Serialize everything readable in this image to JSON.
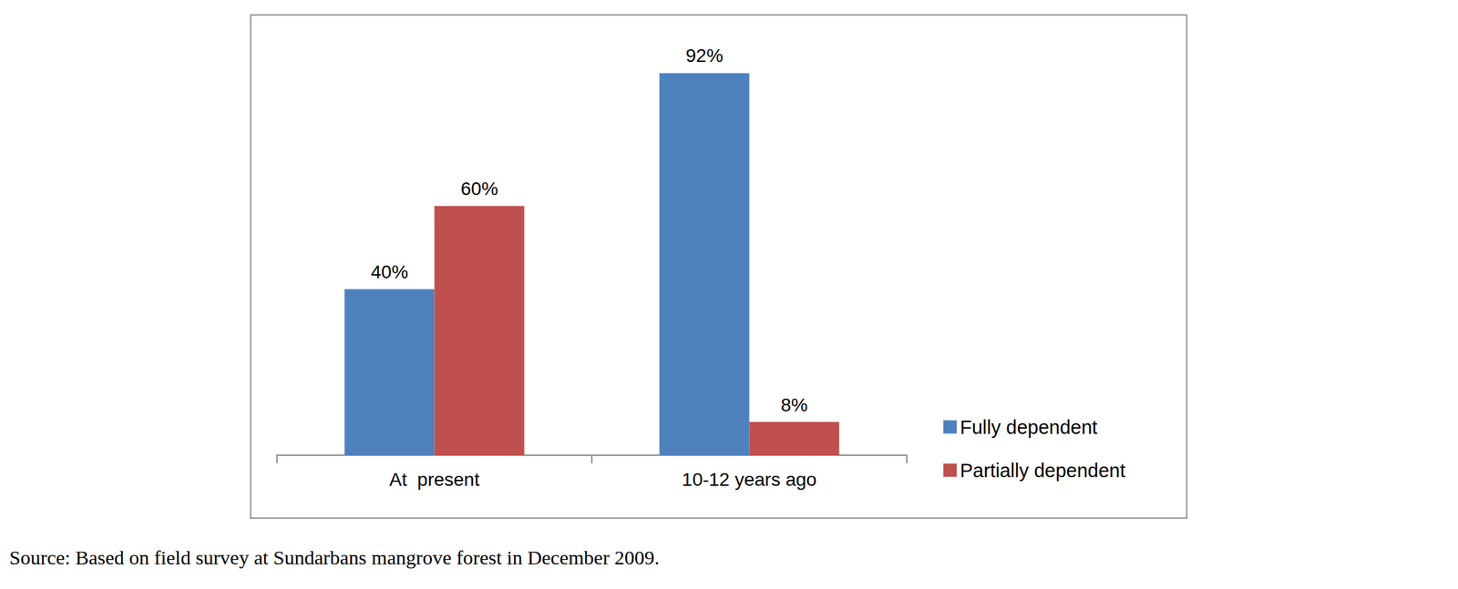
{
  "chart_data": {
    "type": "bar",
    "categories": [
      "At  present",
      "10-12 years ago"
    ],
    "series": [
      {
        "name": "Fully dependent",
        "color": "#4f81bd",
        "values": [
          40,
          92
        ],
        "value_labels": [
          "40%",
          "92%"
        ]
      },
      {
        "name": "Partially dependent",
        "color": "#c0504d",
        "values": [
          60,
          8
        ],
        "value_labels": [
          "60%",
          "8%"
        ]
      }
    ],
    "ylim": [
      0,
      100
    ],
    "yticks": [
      0,
      100
    ],
    "grid": false,
    "legend": "right",
    "data_labels": true,
    "tick_labels": "x",
    "caption": "Source: Based on field survey at Sundarbans mangrove forest in December 2009."
  }
}
